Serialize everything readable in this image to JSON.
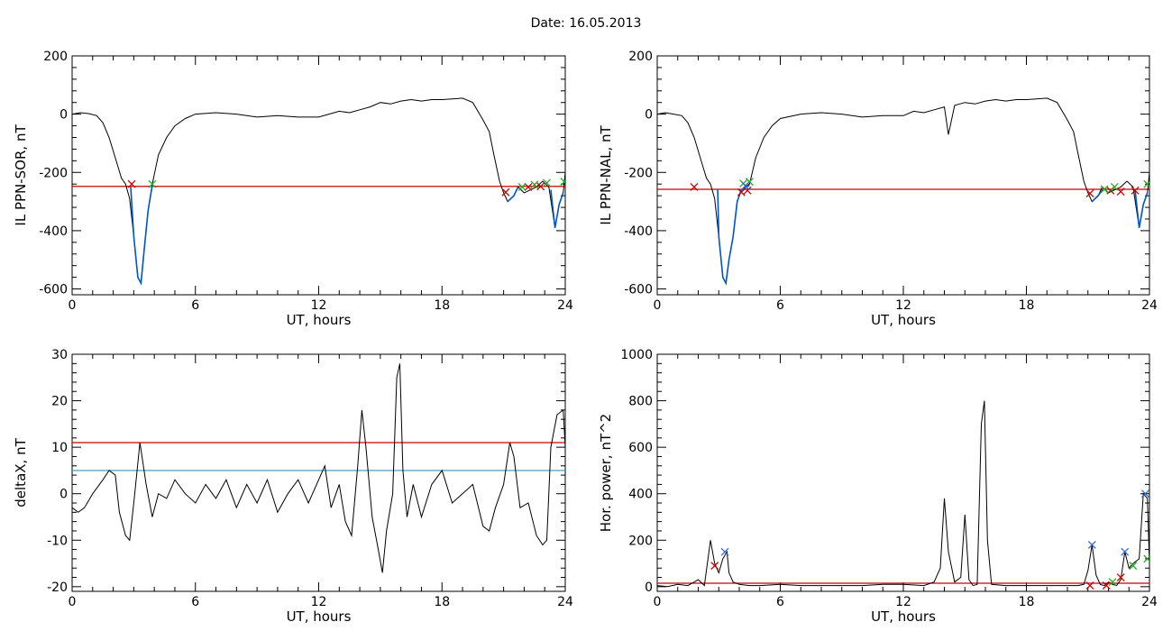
{
  "page": {
    "title": "Date:  16.05.2013"
  },
  "chart_data": [
    {
      "id": "top-left",
      "type": "line",
      "xlabel": "UT, hours",
      "ylabel": "IL PPN-SOR, nT",
      "xlim": [
        0,
        24
      ],
      "ylim": [
        -620,
        200
      ],
      "xticks": [
        0,
        6,
        12,
        18,
        24
      ],
      "yticks": [
        -600,
        -400,
        -200,
        0,
        200
      ],
      "threshold": -248,
      "series": [
        {
          "color": "#000000",
          "x": [
            0,
            0.4,
            0.8,
            1.2,
            1.5,
            1.8,
            2.1,
            2.4,
            2.6,
            2.8,
            3.0,
            3.2,
            3.35,
            3.5,
            3.7,
            3.9,
            4.2,
            4.6,
            5.0,
            5.5,
            6.0,
            7,
            8,
            9,
            10,
            11,
            12,
            12.5,
            13,
            13.5,
            14,
            14.5,
            15,
            15.5,
            16,
            16.5,
            17,
            17.5,
            18,
            18.5,
            19,
            19.5,
            20,
            20.3,
            20.5,
            20.8,
            21.0,
            21.2,
            21.5,
            21.7,
            22.0,
            22.3,
            22.6,
            22.9,
            23.2,
            23.5,
            23.7,
            23.9,
            24
          ],
          "y": [
            0,
            5,
            2,
            -5,
            -30,
            -80,
            -150,
            -220,
            -240,
            -290,
            -420,
            -560,
            -580,
            -470,
            -330,
            -240,
            -140,
            -80,
            -40,
            -15,
            0,
            5,
            0,
            -10,
            -5,
            -10,
            -10,
            0,
            10,
            5,
            15,
            25,
            40,
            35,
            45,
            50,
            45,
            50,
            50,
            52,
            55,
            40,
            -20,
            -60,
            -130,
            -230,
            -270,
            -300,
            -280,
            -250,
            -270,
            -260,
            -250,
            -230,
            -250,
            -390,
            -310,
            -270,
            -200
          ]
        },
        {
          "color": "#0055cc",
          "x": [
            2.85,
            3.0,
            3.2,
            3.35,
            3.5,
            3.7,
            3.9
          ],
          "y": [
            -250,
            -420,
            -560,
            -580,
            -470,
            -330,
            -245
          ]
        },
        {
          "color": "#0055cc",
          "x": [
            21.2,
            21.5,
            21.7
          ],
          "y": [
            -300,
            -280,
            -250
          ]
        },
        {
          "color": "#0055cc",
          "x": [
            23.3,
            23.5,
            23.7,
            23.9
          ],
          "y": [
            -260,
            -390,
            -310,
            -270
          ]
        }
      ],
      "markers": [
        {
          "color": "#cc0000",
          "x": [
            2.9,
            21.1,
            22.2,
            22.8
          ],
          "y": [
            -240,
            -268,
            -250,
            -248
          ]
        },
        {
          "color": "#22aa22",
          "x": [
            3.9,
            21.9,
            22.5,
            23.1,
            23.95
          ],
          "y": [
            -240,
            -250,
            -242,
            -236,
            -232
          ]
        }
      ]
    },
    {
      "id": "top-right",
      "type": "line",
      "xlabel": "UT, hours",
      "ylabel": "IL PPN-NAL, nT",
      "xlim": [
        0,
        24
      ],
      "ylim": [
        -620,
        200
      ],
      "xticks": [
        0,
        6,
        12,
        18,
        24
      ],
      "yticks": [
        -600,
        -400,
        -200,
        0,
        200
      ],
      "threshold": -258,
      "series": [
        {
          "color": "#000000",
          "x": [
            0,
            0.4,
            0.8,
            1.2,
            1.5,
            1.8,
            2.1,
            2.4,
            2.6,
            2.8,
            3.0,
            3.2,
            3.35,
            3.5,
            3.7,
            3.9,
            4.1,
            4.3,
            4.5,
            4.8,
            5.2,
            5.6,
            6.0,
            7,
            8,
            9,
            10,
            11,
            12,
            12.5,
            13,
            13.5,
            14,
            14.2,
            14.5,
            15,
            15.5,
            16,
            16.5,
            17,
            17.5,
            18,
            18.5,
            19,
            19.5,
            20,
            20.3,
            20.5,
            20.8,
            21.0,
            21.2,
            21.5,
            21.7,
            22.0,
            22.3,
            22.6,
            22.9,
            23.2,
            23.5,
            23.7,
            23.9,
            24
          ],
          "y": [
            0,
            5,
            0,
            -5,
            -30,
            -80,
            -150,
            -220,
            -240,
            -290,
            -420,
            -560,
            -580,
            -500,
            -420,
            -300,
            -260,
            -250,
            -240,
            -150,
            -80,
            -40,
            -15,
            0,
            5,
            0,
            -10,
            -5,
            -5,
            10,
            5,
            15,
            25,
            -70,
            30,
            40,
            35,
            45,
            50,
            45,
            50,
            50,
            52,
            55,
            40,
            -20,
            -60,
            -130,
            -230,
            -270,
            -300,
            -280,
            -250,
            -270,
            -260,
            -250,
            -230,
            -250,
            -390,
            -310,
            -270,
            -200
          ]
        },
        {
          "color": "#0055cc",
          "x": [
            2.95,
            3.0,
            3.2,
            3.35,
            3.5,
            3.7,
            3.9,
            4.1,
            4.3,
            4.5
          ],
          "y": [
            -260,
            -420,
            -560,
            -580,
            -500,
            -420,
            -300,
            -260,
            -250,
            -245
          ]
        },
        {
          "color": "#0055cc",
          "x": [
            21.2,
            21.5,
            21.7
          ],
          "y": [
            -300,
            -280,
            -260
          ]
        },
        {
          "color": "#0055cc",
          "x": [
            23.3,
            23.5,
            23.7,
            23.9
          ],
          "y": [
            -262,
            -390,
            -310,
            -270
          ]
        }
      ],
      "markers": [
        {
          "color": "#cc0000",
          "x": [
            1.8,
            4.1,
            4.4,
            21.1,
            22.1,
            22.6,
            23.3
          ],
          "y": [
            -250,
            -268,
            -262,
            -272,
            -262,
            -266,
            -262
          ]
        },
        {
          "color": "#22aa22",
          "x": [
            4.2,
            4.5,
            21.8,
            22.3,
            23.9
          ],
          "y": [
            -238,
            -232,
            -258,
            -250,
            -240
          ]
        },
        {
          "color": "#3366cc",
          "x": [
            4.3
          ],
          "y": [
            -246
          ]
        }
      ]
    },
    {
      "id": "bottom-left",
      "type": "line",
      "xlabel": "UT, hours",
      "ylabel": "deltaX, nT",
      "xlim": [
        0,
        24
      ],
      "ylim": [
        -21,
        30
      ],
      "xticks": [
        0,
        6,
        12,
        18,
        24
      ],
      "yticks": [
        -20,
        -10,
        0,
        10,
        20,
        30
      ],
      "thresholds": [
        {
          "value": 11,
          "color": "#cc0000"
        },
        {
          "value": 5,
          "color": "#3399aa"
        }
      ],
      "series": [
        {
          "color": "#000000",
          "x": [
            0,
            0.3,
            0.6,
            1.0,
            1.5,
            1.8,
            2.1,
            2.3,
            2.6,
            2.8,
            3.0,
            3.3,
            3.6,
            3.9,
            4.2,
            4.6,
            5.0,
            5.5,
            6.0,
            6.5,
            7.0,
            7.5,
            8.0,
            8.5,
            9.0,
            9.5,
            10.0,
            10.5,
            11.0,
            11.5,
            12.0,
            12.3,
            12.6,
            13.0,
            13.3,
            13.6,
            13.9,
            14.1,
            14.3,
            14.6,
            14.9,
            15.1,
            15.3,
            15.6,
            15.8,
            15.95,
            16.1,
            16.3,
            16.6,
            17.0,
            17.5,
            18.0,
            18.5,
            19.0,
            19.5,
            20.0,
            20.3,
            20.6,
            21.0,
            21.3,
            21.5,
            21.8,
            22.2,
            22.6,
            22.9,
            23.1,
            23.3,
            23.6,
            23.9,
            24
          ],
          "y": [
            -3,
            -4,
            -3,
            0,
            3,
            5,
            4,
            -4,
            -9,
            -10,
            -2,
            11,
            2,
            -5,
            0,
            -1,
            3,
            0,
            -2,
            2,
            -1,
            3,
            -3,
            2,
            -2,
            3,
            -4,
            0,
            3,
            -2,
            3,
            6,
            -3,
            2,
            -6,
            -9,
            6,
            18,
            10,
            -5,
            -12,
            -17,
            -8,
            0,
            25,
            28,
            5,
            -5,
            2,
            -5,
            2,
            5,
            -2,
            0,
            2,
            -7,
            -8,
            -3,
            2,
            11,
            8,
            -3,
            -2,
            -9,
            -11,
            -10,
            10,
            17,
            18,
            10
          ]
        }
      ],
      "markers": []
    },
    {
      "id": "bottom-right",
      "type": "line",
      "xlabel": "UT, hours",
      "ylabel": "Hor. power, nT^2",
      "xlim": [
        0,
        24
      ],
      "ylim": [
        -20,
        1000
      ],
      "xticks": [
        0,
        6,
        12,
        18,
        24
      ],
      "yticks": [
        0,
        200,
        400,
        600,
        800,
        1000
      ],
      "threshold": 15,
      "series": [
        {
          "color": "#000000",
          "x": [
            0,
            0.5,
            1.0,
            1.5,
            2.0,
            2.3,
            2.6,
            2.8,
            3.0,
            3.2,
            3.4,
            3.5,
            3.7,
            4.0,
            4.5,
            5.0,
            6.0,
            7.0,
            8.0,
            9.0,
            10.0,
            11.0,
            12.0,
            13.0,
            13.5,
            13.8,
            14.0,
            14.2,
            14.5,
            14.8,
            15.0,
            15.2,
            15.4,
            15.6,
            15.8,
            15.95,
            16.1,
            16.3,
            17.0,
            18.0,
            19.0,
            20.0,
            20.5,
            20.8,
            21.0,
            21.2,
            21.4,
            21.6,
            21.8,
            22.0,
            22.2,
            22.4,
            22.6,
            22.8,
            23.0,
            23.2,
            23.5,
            23.7,
            23.9,
            24
          ],
          "y": [
            5,
            0,
            10,
            5,
            30,
            5,
            200,
            100,
            60,
            120,
            150,
            60,
            20,
            10,
            5,
            5,
            10,
            5,
            5,
            5,
            5,
            10,
            10,
            5,
            20,
            80,
            380,
            150,
            20,
            40,
            310,
            30,
            5,
            10,
            700,
            800,
            200,
            10,
            5,
            5,
            5,
            5,
            5,
            10,
            70,
            180,
            50,
            10,
            5,
            20,
            10,
            5,
            30,
            150,
            80,
            100,
            120,
            400,
            380,
            100
          ]
        }
      ],
      "markers": [
        {
          "color": "#cc0000",
          "x": [
            2.8,
            21.1,
            21.9,
            22.6
          ],
          "y": [
            90,
            5,
            5,
            40
          ]
        },
        {
          "color": "#22aa22",
          "x": [
            22.2,
            23.2,
            23.9
          ],
          "y": [
            20,
            90,
            120
          ]
        },
        {
          "color": "#3366cc",
          "x": [
            3.3,
            21.2,
            22.8,
            23.8
          ],
          "y": [
            150,
            180,
            150,
            400
          ]
        }
      ]
    }
  ]
}
